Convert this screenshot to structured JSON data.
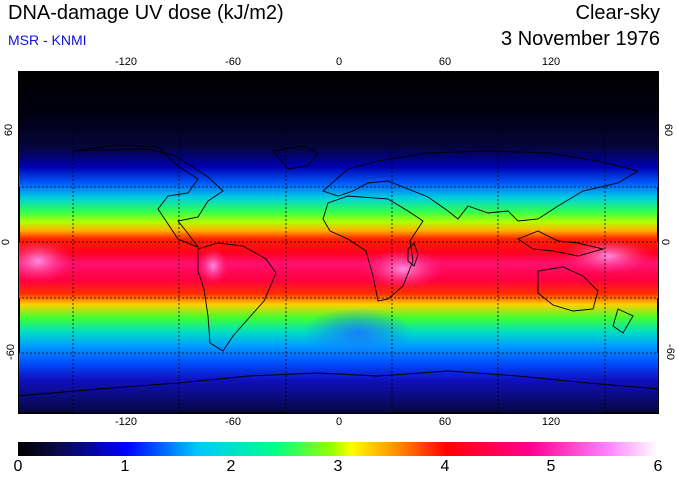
{
  "header": {
    "title": "DNA-damage UV dose (kJ/m2)",
    "subtitle": "MSR - KNMI",
    "sky_condition": "Clear-sky",
    "date": "3 November 1976"
  },
  "map": {
    "lon_ticks": [
      "-120",
      "-60",
      "0",
      "60",
      "120"
    ],
    "lat_ticks": [
      "60",
      "0",
      "-60"
    ]
  },
  "colorbar": {
    "ticks": [
      "0",
      "1",
      "2",
      "3",
      "4",
      "5",
      "6"
    ],
    "min": 0,
    "max": 6,
    "units": "kJ/m2"
  }
}
